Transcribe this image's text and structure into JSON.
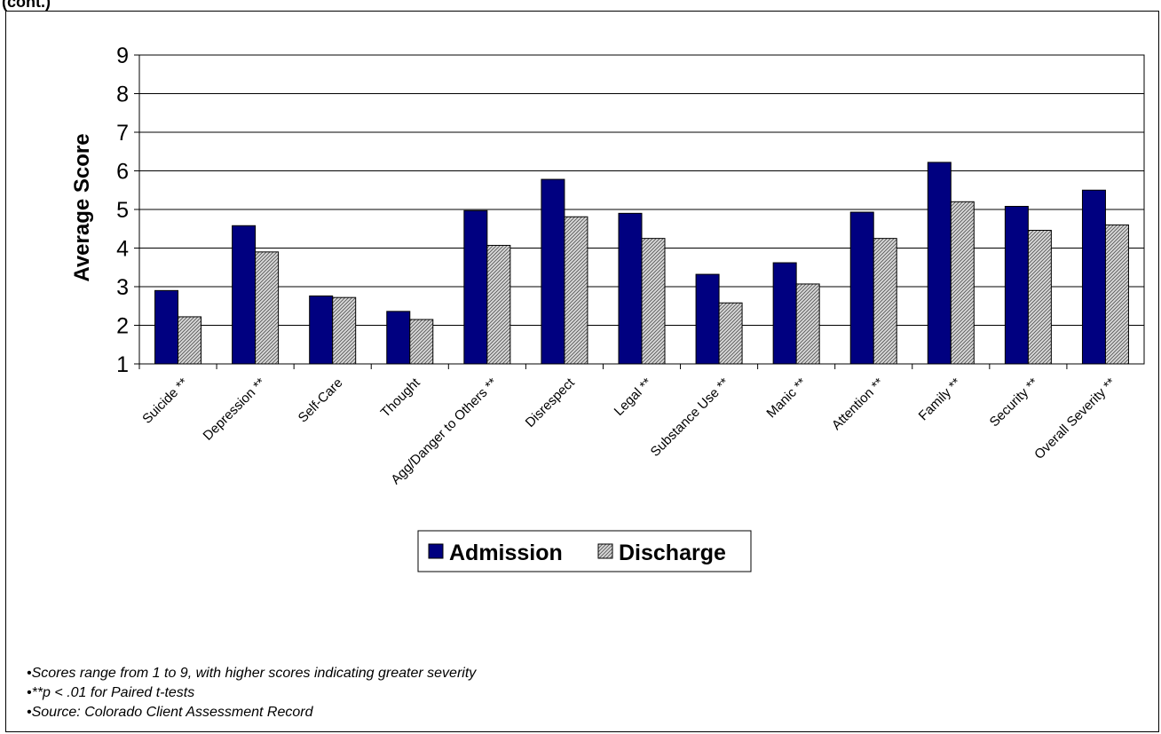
{
  "header_fragment": "(cont.)",
  "chart_data": {
    "type": "bar",
    "title": "",
    "xlabel": "",
    "ylabel": "Average Score",
    "ylim": [
      1,
      9
    ],
    "yticks": [
      "1",
      "2",
      "3",
      "4",
      "5",
      "6",
      "7",
      "8",
      "9"
    ],
    "grid": true,
    "legend_position": "bottom-center",
    "categories": [
      "Suicide **",
      "Depression **",
      "Self-Care",
      "Thought",
      "Agg/Danger to Others **",
      "Disrespect",
      "Legal **",
      "Substance Use **",
      "Manic **",
      "Attention **",
      "Family **",
      "Security **",
      "Overall Severity **"
    ],
    "series": [
      {
        "name": "Admission",
        "color": "#000080",
        "pattern": "solid",
        "values": [
          2.9,
          4.58,
          2.76,
          2.36,
          4.97,
          5.78,
          4.9,
          3.32,
          3.62,
          4.93,
          6.22,
          5.08,
          5.5
        ]
      },
      {
        "name": "Discharge",
        "color": "#bfbfbf",
        "pattern": "hatched",
        "values": [
          2.22,
          3.9,
          2.72,
          2.15,
          4.07,
          4.81,
          4.25,
          2.58,
          3.07,
          4.25,
          5.2,
          4.46,
          4.6
        ]
      }
    ]
  },
  "notes": [
    "•Scores range from 1 to 9, with higher scores indicating greater severity",
    "•**p < .01 for Paired t-tests",
    "•Source: Colorado Client Assessment Record"
  ]
}
